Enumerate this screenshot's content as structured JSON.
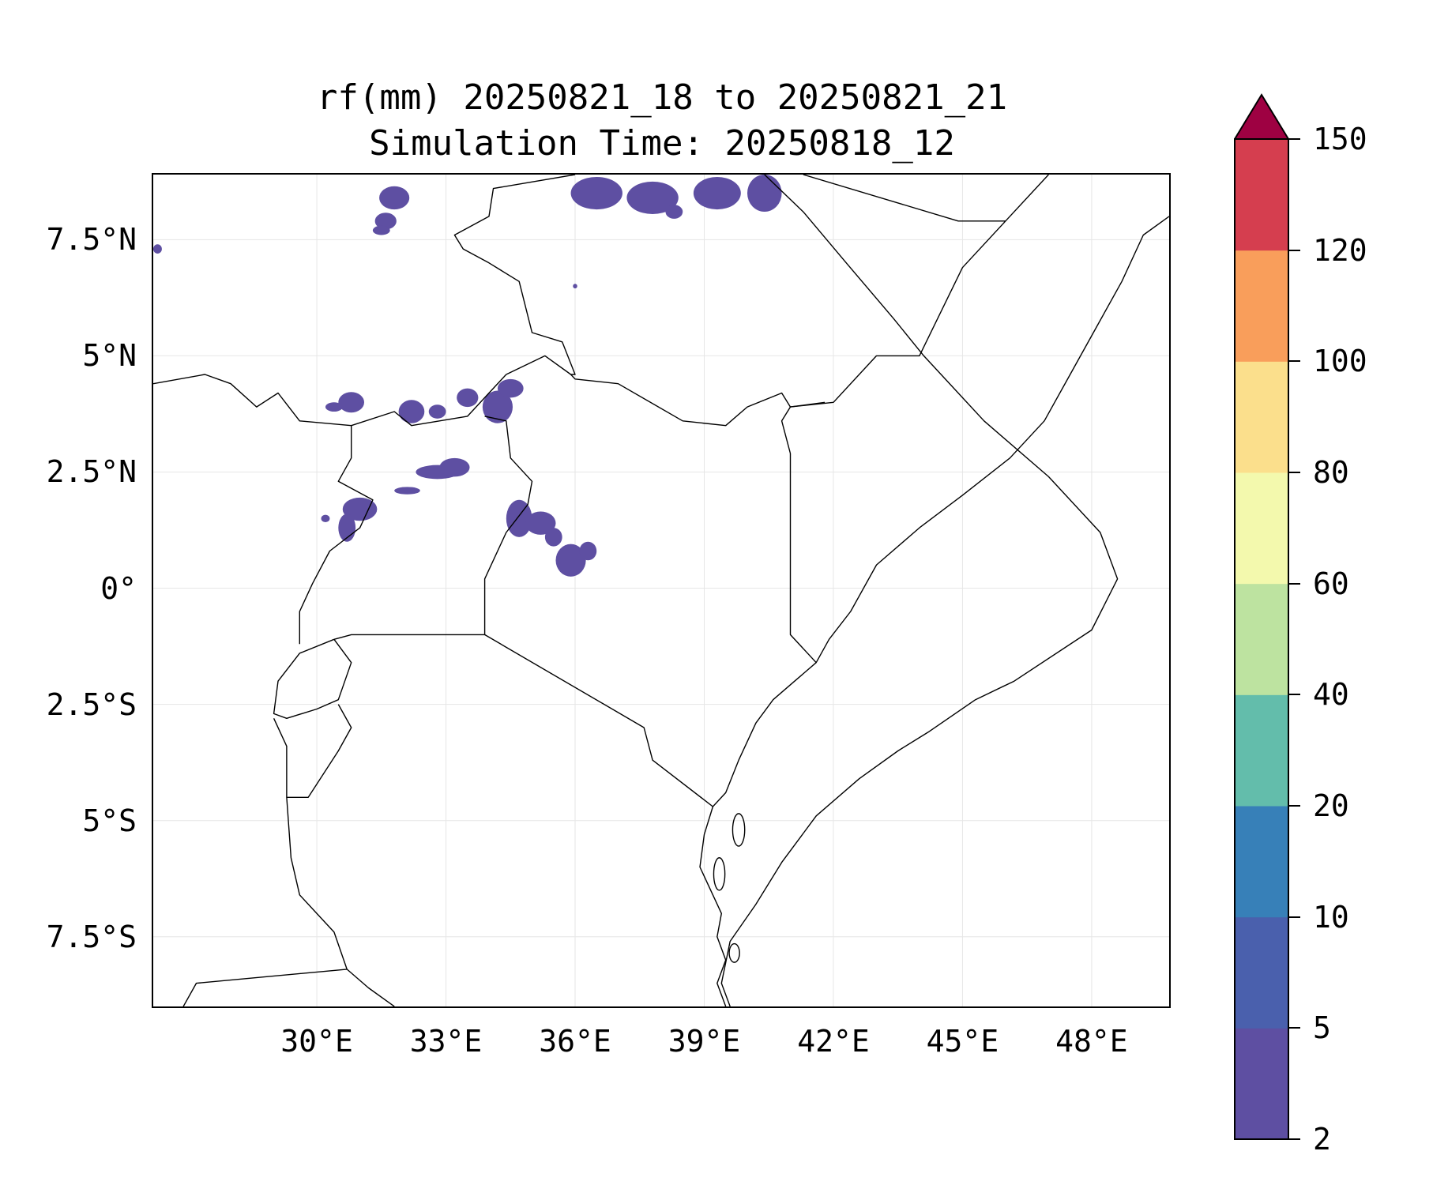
{
  "title": {
    "line1": "rf(mm) 20250821_18 to 20250821_21",
    "line2": "Simulation Time: 20250818_12"
  },
  "map": {
    "lon_range": [
      26.2,
      49.8
    ],
    "lat_range": [
      -9.0,
      8.9
    ],
    "lat_ticks": [
      {
        "value": 7.5,
        "label": "7.5°N"
      },
      {
        "value": 5,
        "label": "5°N"
      },
      {
        "value": 2.5,
        "label": "2.5°N"
      },
      {
        "value": 0,
        "label": "0°"
      },
      {
        "value": -2.5,
        "label": "2.5°S"
      },
      {
        "value": -5,
        "label": "5°S"
      },
      {
        "value": -7.5,
        "label": "7.5°S"
      }
    ],
    "lon_ticks": [
      {
        "value": 30,
        "label": "30°E"
      },
      {
        "value": 33,
        "label": "33°E"
      },
      {
        "value": 36,
        "label": "36°E"
      },
      {
        "value": 39,
        "label": "39°E"
      },
      {
        "value": 42,
        "label": "42°E"
      },
      {
        "value": 45,
        "label": "45°E"
      },
      {
        "value": 48,
        "label": "48°E"
      }
    ],
    "gridlines": true,
    "rainfall_color": "#5e4fa2"
  },
  "colorbar": {
    "levels": [
      "2",
      "5",
      "10",
      "20",
      "40",
      "60",
      "80",
      "100",
      "120",
      "150"
    ],
    "colors": [
      "#5e4fa2",
      "#4a60ad",
      "#3780b8",
      "#63bdab",
      "#bde3a0",
      "#f3f9ad",
      "#fbdf8c",
      "#f99e5b",
      "#d53e4f"
    ],
    "extend_color": "#9e0142"
  }
}
